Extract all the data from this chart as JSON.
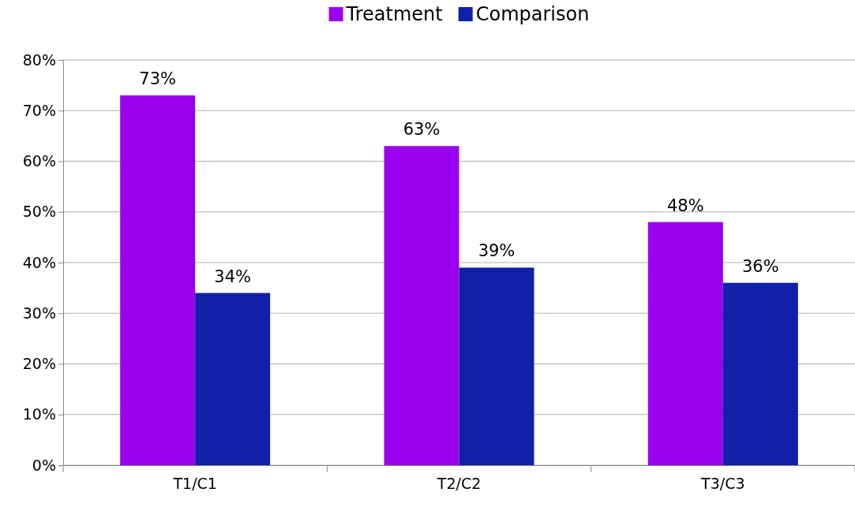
{
  "chart_data": {
    "type": "bar",
    "categories": [
      "T1/C1",
      "T2/C2",
      "T3/C3"
    ],
    "series": [
      {
        "name": "Treatment",
        "color": "#9b00ee",
        "values": [
          73,
          63,
          48
        ],
        "value_labels": [
          "73%",
          "63%",
          "48%"
        ]
      },
      {
        "name": "Comparison",
        "color": "#1020a8",
        "values": [
          34,
          39,
          36
        ],
        "value_labels": [
          "34%",
          "39%",
          "36%"
        ]
      }
    ],
    "ylim": [
      0,
      80
    ],
    "yticks": [
      {
        "value": 0,
        "label": "0%"
      },
      {
        "value": 10,
        "label": "10%"
      },
      {
        "value": 20,
        "label": "20%"
      },
      {
        "value": 30,
        "label": "30%"
      },
      {
        "value": 40,
        "label": "40%"
      },
      {
        "value": 50,
        "label": "50%"
      },
      {
        "value": 60,
        "label": "60%"
      },
      {
        "value": 70,
        "label": "70%"
      },
      {
        "value": 80,
        "label": "80%"
      }
    ],
    "grid": "y",
    "legend": "top"
  }
}
